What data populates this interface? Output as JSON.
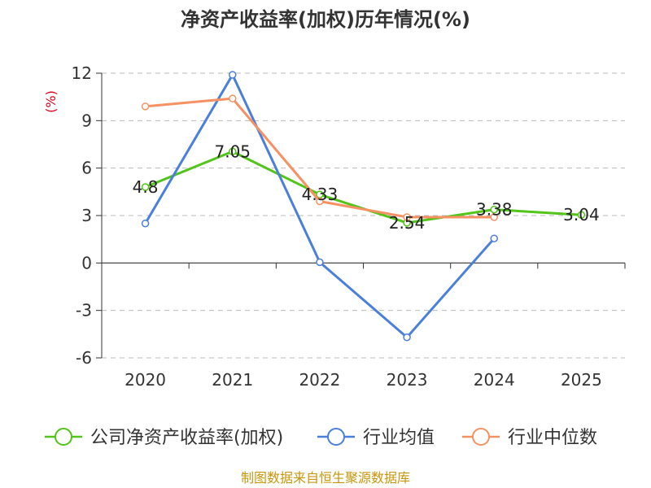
{
  "chart_data": {
    "type": "line",
    "title": "净资产收益率(加权)历年情况(%)",
    "ylabel": "(%)",
    "xlabel": "",
    "categories": [
      "2020",
      "2021",
      "2022",
      "2023",
      "2024",
      "2025"
    ],
    "ylim": [
      -6,
      12
    ],
    "yticks": [
      12,
      9,
      6,
      3,
      0,
      -3,
      -6
    ],
    "ytick_labels": [
      "12",
      "9",
      "6",
      "3",
      "0",
      "-3",
      "-6"
    ],
    "grid": true,
    "series": [
      {
        "name": "公司净资产收益率(加权)",
        "color": "#52c41a",
        "values": [
          4.8,
          7.05,
          4.33,
          2.54,
          3.38,
          3.04
        ],
        "labels": [
          "4.8",
          "7.05",
          "4.33",
          "2.54",
          "3.38",
          "3.04"
        ]
      },
      {
        "name": "行业均值",
        "color": "#4a7fdc",
        "values": [
          2.5,
          11.9,
          0.05,
          -4.7,
          1.55,
          null
        ],
        "labels": null
      },
      {
        "name": "行业中位数",
        "color": "#f59163",
        "values": [
          9.9,
          10.4,
          3.9,
          2.9,
          2.9,
          null
        ],
        "labels": null
      }
    ],
    "legend_position": "bottom",
    "source": "制图数据来自恒生聚源数据库"
  }
}
